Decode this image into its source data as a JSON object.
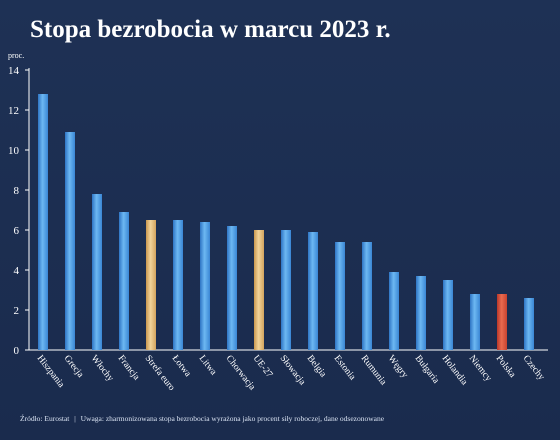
{
  "colors": {
    "background": "#1b2d4f",
    "bar_default": "#4a9be0",
    "bar_highlight_gold": "#e0b870",
    "bar_highlight_red": "#d9553c",
    "axis": "#ffffff"
  },
  "chart_data": {
    "type": "bar",
    "title": "Stopa bezrobocia w marcu 2023 r.",
    "ylabel": "proc.",
    "xlabel": "",
    "ylim": [
      0,
      14
    ],
    "yticks": [
      0,
      2,
      4,
      6,
      8,
      10,
      12,
      14
    ],
    "grid": false,
    "categories": [
      "Hiszpania",
      "Grecja",
      "Włochy",
      "Francja",
      "Strefa euro",
      "Łotwa",
      "Litwa",
      "Chorwacja",
      "UE-27",
      "Słowacja",
      "Belgia",
      "Estonia",
      "Rumunia",
      "Węgry",
      "Bułgaria",
      "Holandia",
      "Niemcy",
      "Polska",
      "Czechy"
    ],
    "values": [
      12.8,
      10.9,
      7.8,
      6.9,
      6.5,
      6.5,
      6.4,
      6.2,
      6.0,
      6.0,
      5.9,
      5.4,
      5.4,
      3.9,
      3.7,
      3.5,
      2.8,
      2.8,
      2.6
    ],
    "highlight": {
      "Strefa euro": "gold",
      "UE-27": "gold",
      "Polska": "red"
    }
  },
  "footnote": {
    "source": "Źródło: Eurostat",
    "separator": "|",
    "note": "Uwaga: zharmonizowana stopa bezrobocia wyrażona jako procent siły roboczej, dane odsezonowane"
  }
}
